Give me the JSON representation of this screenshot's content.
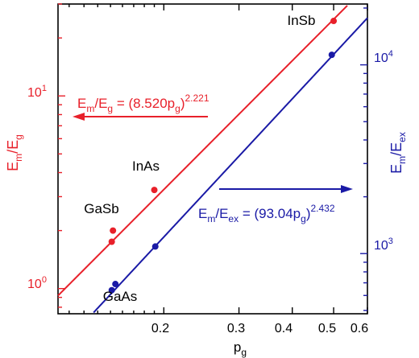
{
  "chart_data": {
    "type": "scatter",
    "x_axis": {
      "label_main": "p",
      "label_sub": "g",
      "scale": "log",
      "range": [
        0.113,
        0.6
      ],
      "ticks": [
        {
          "value": 0.2,
          "label": "0.2"
        },
        {
          "value": 0.3,
          "label": "0.3"
        },
        {
          "value": 0.4,
          "label": "0.4"
        },
        {
          "value": 0.5,
          "label": "0.5"
        },
        {
          "value": 0.6,
          "label": "0.6"
        }
      ]
    },
    "y_left_axis": {
      "label_parts": [
        [
          "E",
          "main"
        ],
        [
          "m",
          "sub"
        ],
        [
          "/E",
          "main"
        ],
        [
          "g",
          "sub"
        ]
      ],
      "scale": "log",
      "range": [
        0.74,
        30
      ],
      "color": "#e8202a",
      "ticks": [
        {
          "value": 1,
          "base": "10",
          "exp": "0"
        },
        {
          "value": 10,
          "base": "10",
          "exp": "1"
        }
      ]
    },
    "y_right_axis": {
      "label_parts": [
        [
          "E",
          "main"
        ],
        [
          "m",
          "sub"
        ],
        [
          "/E",
          "main"
        ],
        [
          "ex",
          "sub"
        ]
      ],
      "scale": "log",
      "range": [
        480,
        21000
      ],
      "color": "#1a1aa6",
      "ticks": [
        {
          "value": 1000,
          "base": "10",
          "exp": "3"
        },
        {
          "value": 10000,
          "base": "10",
          "exp": "4"
        }
      ]
    },
    "series": [
      {
        "axis": "left",
        "color": "#e8202a",
        "points": [
          {
            "x": 0.151,
            "y": 1.75
          },
          {
            "x": 0.152,
            "y": 2.0
          },
          {
            "x": 0.19,
            "y": 3.25
          },
          {
            "x": 0.5,
            "y": 24.5
          }
        ],
        "fit": {
          "coef": 8.52,
          "exp": 2.221
        }
      },
      {
        "axis": "right",
        "color": "#1a1aa6",
        "points": [
          {
            "x": 0.151,
            "y": 640
          },
          {
            "x": 0.154,
            "y": 690
          },
          {
            "x": 0.191,
            "y": 1090
          },
          {
            "x": 0.495,
            "y": 11300
          }
        ],
        "fit": {
          "coef": 93.04,
          "exp": 2.432
        }
      }
    ],
    "point_labels": {
      "insb": "InSb",
      "inas": "InAs",
      "gasb": "GaSb",
      "gaas": "GaAs"
    },
    "annotations": {
      "left_eq": {
        "color": "#e8202a",
        "parts": [
          [
            "E",
            "main"
          ],
          [
            "m",
            "sub"
          ],
          [
            "/E",
            "main"
          ],
          [
            "g",
            "sub"
          ],
          [
            " = (8.520p",
            "main"
          ],
          [
            "g",
            "sub"
          ],
          [
            ")",
            "main"
          ],
          [
            "2.221",
            "sup"
          ]
        ],
        "arrow": "left"
      },
      "right_eq": {
        "color": "#1a1aa6",
        "parts": [
          [
            "E",
            "main"
          ],
          [
            "m",
            "sub"
          ],
          [
            "/E",
            "main"
          ],
          [
            "ex",
            "sub"
          ],
          [
            " = (93.04p",
            "main"
          ],
          [
            "g",
            "sub"
          ],
          [
            ")",
            "main"
          ],
          [
            "2.432",
            "sup"
          ]
        ],
        "arrow": "right"
      }
    }
  }
}
